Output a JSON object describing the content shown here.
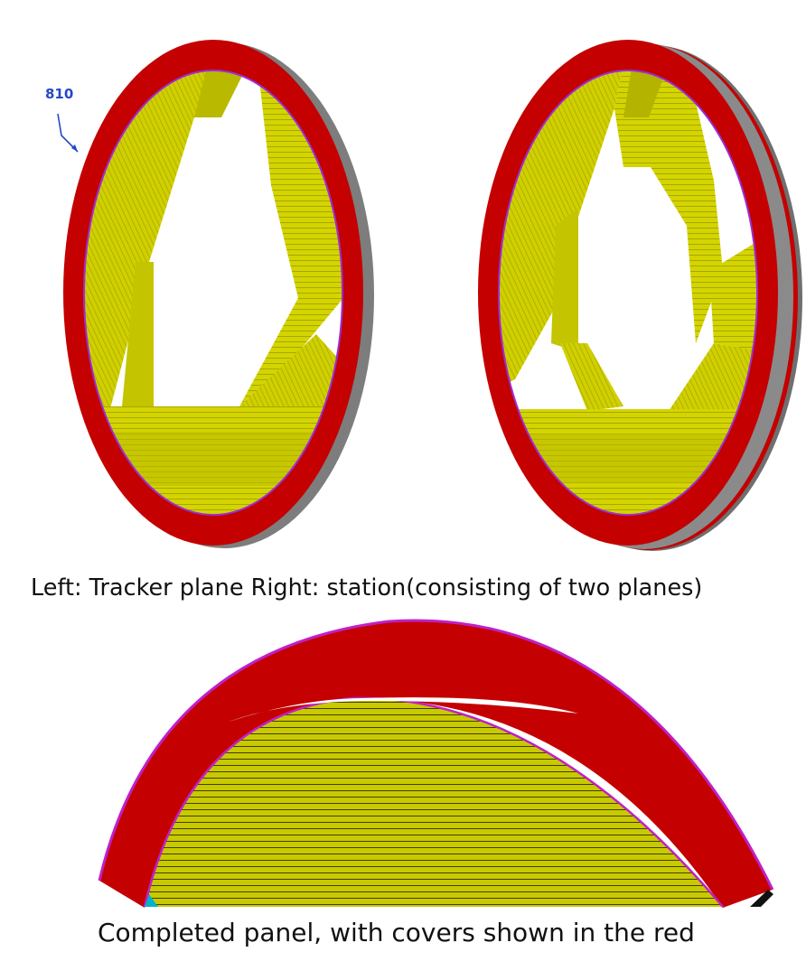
{
  "labels": {
    "reference_number": "810",
    "caption_top": "Left: Tracker plane    Right: station(consisting of two planes)",
    "caption_bottom": "Completed panel, with covers shown in the red"
  },
  "colors": {
    "frame_red": "#c40000",
    "straw_yellow": "#d4d400",
    "straw_yellow_dark": "#a8a800",
    "edge_grey": "#7a7a7a",
    "inner_edge_purple": "#9a2fd6",
    "callout_blue": "#2449c9"
  }
}
